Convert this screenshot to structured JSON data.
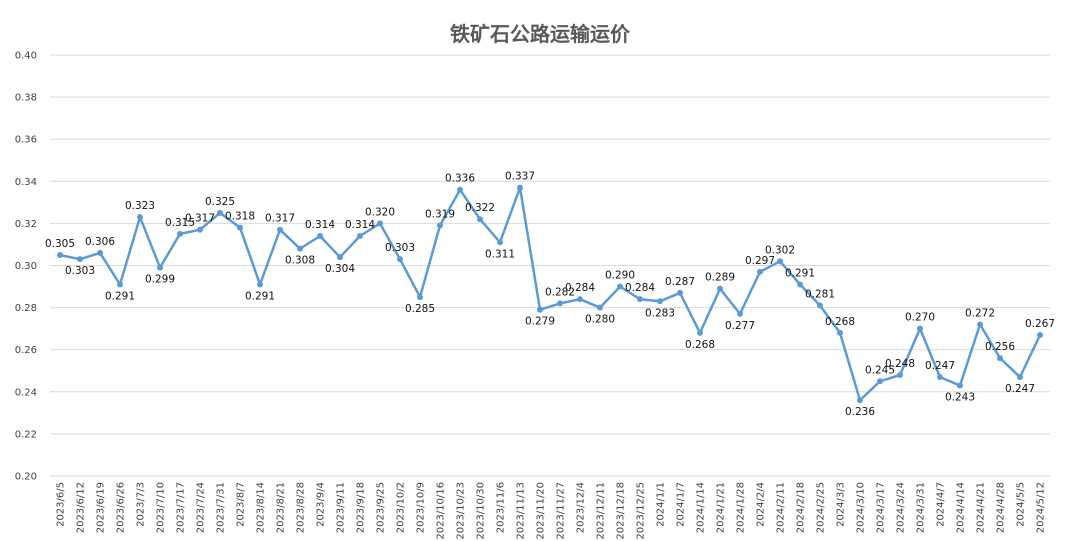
{
  "chart_data": {
    "type": "line",
    "title": "铁矿石公路运输运价",
    "ylim": [
      0.2,
      0.4
    ],
    "yticks": [
      "0.20",
      "0.22",
      "0.24",
      "0.26",
      "0.28",
      "0.30",
      "0.32",
      "0.34",
      "0.36",
      "0.38",
      "0.40"
    ],
    "grid": true,
    "legend": "none",
    "color": "#5b9bd5",
    "categories": [
      "2023/6/5",
      "2023/6/12",
      "2023/6/19",
      "2023/6/26",
      "2023/7/3",
      "2023/7/10",
      "2023/7/17",
      "2023/7/24",
      "2023/7/31",
      "2023/8/7",
      "2023/8/14",
      "2023/8/21",
      "2023/8/28",
      "2023/9/4",
      "2023/9/11",
      "2023/9/18",
      "2023/9/25",
      "2023/10/2",
      "2023/10/9",
      "2023/10/16",
      "2023/10/23",
      "2023/10/30",
      "2023/11/6",
      "2023/11/13",
      "2023/11/20",
      "2023/11/27",
      "2023/12/4",
      "2023/12/11",
      "2023/12/18",
      "2023/12/25",
      "2024/1/1",
      "2024/1/7",
      "2024/1/14",
      "2024/1/21",
      "2024/1/28",
      "2024/2/4",
      "2024/2/11",
      "2024/2/18",
      "2024/2/25",
      "2024/3/3",
      "2024/3/10",
      "2024/3/17",
      "2024/3/24",
      "2024/3/31",
      "2024/4/7",
      "2024/4/14",
      "2024/4/21",
      "2024/4/28",
      "2024/5/5",
      "2024/5/12"
    ],
    "values": [
      0.305,
      0.303,
      0.306,
      0.291,
      0.323,
      0.299,
      0.315,
      0.317,
      0.325,
      0.318,
      0.291,
      0.317,
      0.308,
      0.314,
      0.304,
      0.314,
      0.32,
      0.303,
      0.285,
      0.319,
      0.336,
      0.322,
      0.311,
      0.337,
      0.279,
      0.282,
      0.284,
      0.28,
      0.29,
      0.284,
      0.283,
      0.287,
      0.268,
      0.289,
      0.277,
      0.297,
      0.302,
      0.291,
      0.281,
      0.268,
      0.236,
      0.245,
      0.248,
      0.27,
      0.247,
      0.243,
      0.272,
      0.256,
      0.247,
      0.267
    ],
    "labels": [
      "0.305",
      "0.303",
      "0.306",
      "0.291",
      "0.323",
      "0.299",
      "0.315",
      "0.317",
      "0.325",
      "0.318",
      "0.291",
      "0.317",
      "0.308",
      "0.314",
      "0.304",
      "0.314",
      "0.320",
      "0.303",
      "0.285",
      "0.319",
      "0.336",
      "0.322",
      "0.311",
      "0.337",
      "0.279",
      "0.282",
      "0.284",
      "0.280",
      "0.290",
      "0.284",
      "0.283",
      "0.287",
      "0.268",
      "0.289",
      "0.277",
      "0.297",
      "0.302",
      "0.291",
      "0.281",
      "0.268",
      "0.236",
      "0.245",
      "0.248",
      "0.270",
      "0.247",
      "0.243",
      "0.272",
      "0.256",
      "0.247",
      "0.267"
    ]
  }
}
